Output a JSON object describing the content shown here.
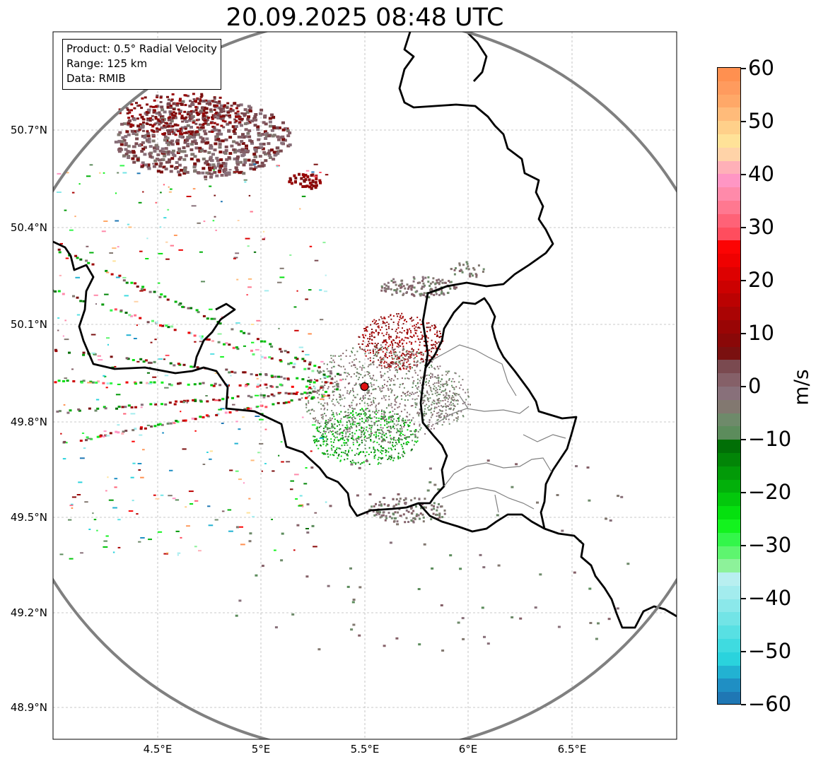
{
  "title": "20.09.2025 08:48 UTC",
  "infobox": {
    "product": "Product: 0.5° Radial Velocity",
    "range": "Range: 125 km",
    "data": "Data: RMIB"
  },
  "axes": {
    "lat_ticks": [
      "50.7°N",
      "50.4°N",
      "50.1°N",
      "49.8°N",
      "49.5°N",
      "49.2°N",
      "48.9°N"
    ],
    "lon_ticks": [
      "4.5°E",
      "5°E",
      "5.5°E",
      "6°E",
      "6.5°E"
    ]
  },
  "radar": {
    "lon": 5.5,
    "lat": 49.91,
    "range_km": 125,
    "site_color": "#dd1111"
  },
  "colorbar": {
    "label": "m/s",
    "vmin": -60,
    "vmax": 60,
    "ticks": [
      "60",
      "50",
      "40",
      "30",
      "20",
      "10",
      "0",
      "−10",
      "−20",
      "−30",
      "−40",
      "−50",
      "−60"
    ],
    "segments": [
      "#1f77b4",
      "#1f8fc4",
      "#22b2d2",
      "#2ad3dd",
      "#3fdbe0",
      "#58e0e3",
      "#72e4e6",
      "#8be8ea",
      "#a3ecee",
      "#b8eff0",
      "#8df29a",
      "#5ef56f",
      "#33f64a",
      "#13f31e",
      "#05e00f",
      "#03c80c",
      "#02b00a",
      "#029a08",
      "#028507",
      "#016f06",
      "#5c8c5c",
      "#6e8a6a",
      "#827870",
      "#88707a",
      "#856068",
      "#7a4a50",
      "#7a1010",
      "#8a0808",
      "#990505",
      "#aa0404",
      "#bb0202",
      "#cc0101",
      "#dd0101",
      "#ef0101",
      "#fc0404",
      "#ff4d5e",
      "#ff6277",
      "#ff7890",
      "#ff8aaa",
      "#ff96c4",
      "#ffb0b8",
      "#ffd3a8",
      "#ffe298",
      "#ffd08a",
      "#ffbb7a",
      "#ffa868",
      "#ff9b5e",
      "#ff9050"
    ]
  }
}
